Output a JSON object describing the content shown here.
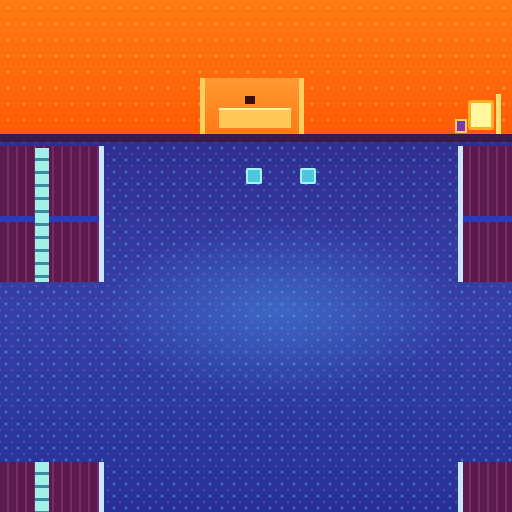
{
  "scene": {
    "colors": {
      "sky": "#ff7a10",
      "floor": "#2f2f92",
      "panel": "#5a1a4e",
      "ladder": "#9ff0e6",
      "marker": "#4ec8e0"
    }
  }
}
